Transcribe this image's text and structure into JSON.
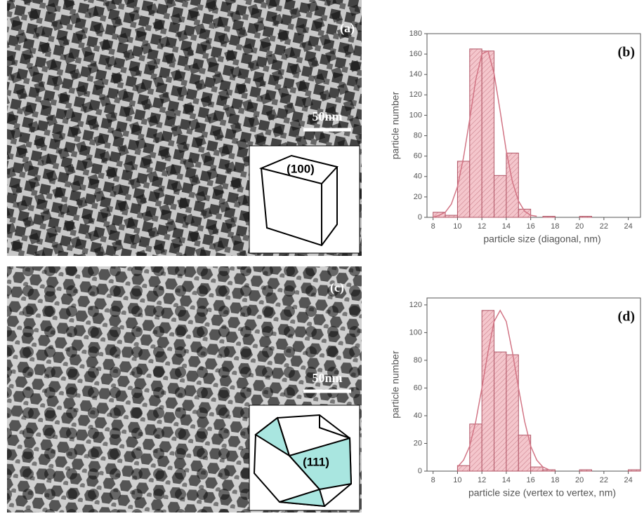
{
  "panels": [
    {
      "label": "(a)",
      "scale_bar": "50nm",
      "facet": "(100)"
    },
    {
      "label": "(c)",
      "scale_bar": "50nm",
      "facet": "(111)"
    }
  ],
  "chart_data": [
    {
      "type": "histogram",
      "label": "(b)",
      "x_label": "particle size (diagonal, nm)",
      "y_label": "particle number",
      "bins": [
        8,
        9,
        10,
        11,
        12,
        13,
        14,
        15,
        16,
        17,
        18,
        19,
        20,
        21,
        22,
        23,
        24,
        25
      ],
      "values": [
        5,
        2,
        55,
        165,
        163,
        41,
        63,
        8,
        0,
        1,
        0,
        0,
        1,
        0,
        0,
        0,
        0
      ],
      "color": "#f4c6cc",
      "edge_color": "#b05566",
      "xlim": [
        7.5,
        25
      ],
      "ylim": [
        0,
        180
      ],
      "xticks": [
        8,
        10,
        12,
        14,
        16,
        18,
        20,
        22,
        24
      ],
      "yticks": [
        0,
        20,
        40,
        60,
        80,
        100,
        120,
        140,
        160,
        180
      ],
      "curve": {
        "color": "#d27585",
        "x": [
          8,
          8.5,
          9,
          9.5,
          10,
          10.5,
          11,
          11.5,
          12,
          12.5,
          13,
          13.5,
          14,
          14.5,
          15,
          15.5,
          16,
          16.5
        ],
        "values": [
          0,
          2,
          5,
          13,
          30,
          59,
          96,
          135,
          160,
          163,
          141,
          104,
          65,
          35,
          16,
          6,
          2,
          1
        ]
      }
    },
    {
      "type": "histogram",
      "label": "(d)",
      "x_label": "particle size (vertex to vertex, nm)",
      "y_label": "particle number",
      "bins": [
        8,
        9,
        10,
        11,
        12,
        13,
        14,
        15,
        16,
        17,
        18,
        19,
        20,
        21,
        22,
        23,
        24,
        25
      ],
      "values": [
        0,
        0,
        4,
        34,
        116,
        86,
        84,
        26,
        3,
        1,
        0,
        0,
        1,
        0,
        0,
        0,
        1
      ],
      "color": "#f4c6cc",
      "edge_color": "#b05566",
      "xlim": [
        7.5,
        25
      ],
      "ylim": [
        0,
        125
      ],
      "xticks": [
        8,
        10,
        12,
        14,
        16,
        18,
        20,
        22,
        24
      ],
      "yticks": [
        0,
        20,
        40,
        60,
        80,
        100,
        120
      ],
      "curve": {
        "color": "#d27585",
        "x": [
          10,
          10.5,
          11,
          11.5,
          12,
          12.5,
          13,
          13.5,
          14,
          14.5,
          15,
          15.5,
          16,
          16.5,
          17,
          17.5
        ],
        "values": [
          3,
          8,
          18,
          36,
          60,
          86,
          108,
          116,
          108,
          86,
          60,
          36,
          18,
          8,
          3,
          1
        ]
      }
    }
  ]
}
